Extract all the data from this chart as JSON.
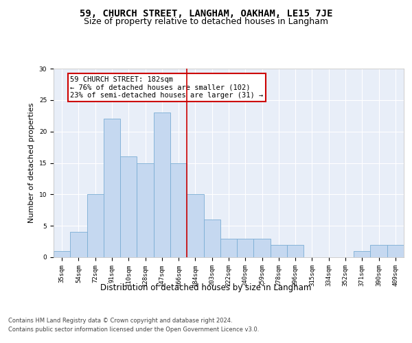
{
  "title": "59, CHURCH STREET, LANGHAM, OAKHAM, LE15 7JE",
  "subtitle": "Size of property relative to detached houses in Langham",
  "xlabel": "Distribution of detached houses by size in Langham",
  "ylabel": "Number of detached properties",
  "categories": [
    "35sqm",
    "54sqm",
    "72sqm",
    "91sqm",
    "110sqm",
    "128sqm",
    "147sqm",
    "166sqm",
    "184sqm",
    "203sqm",
    "222sqm",
    "240sqm",
    "259sqm",
    "278sqm",
    "296sqm",
    "315sqm",
    "334sqm",
    "352sqm",
    "371sqm",
    "390sqm",
    "409sqm"
  ],
  "values": [
    1,
    4,
    10,
    22,
    16,
    15,
    23,
    15,
    10,
    6,
    3,
    3,
    3,
    2,
    2,
    0,
    0,
    0,
    1,
    2,
    2
  ],
  "bar_color": "#c5d8f0",
  "bar_edge_color": "#7aadd4",
  "vline_color": "#cc0000",
  "annotation_text": "59 CHURCH STREET: 182sqm\n← 76% of detached houses are smaller (102)\n23% of semi-detached houses are larger (31) →",
  "annotation_box_color": "#cc0000",
  "ylim": [
    0,
    30
  ],
  "yticks": [
    0,
    5,
    10,
    15,
    20,
    25,
    30
  ],
  "footer_line1": "Contains HM Land Registry data © Crown copyright and database right 2024.",
  "footer_line2": "Contains public sector information licensed under the Open Government Licence v3.0.",
  "plot_bg_color": "#e8eef8",
  "title_fontsize": 10,
  "subtitle_fontsize": 9,
  "xlabel_fontsize": 8.5,
  "ylabel_fontsize": 8,
  "tick_fontsize": 6.5,
  "footer_fontsize": 6,
  "annotation_fontsize": 7.5
}
